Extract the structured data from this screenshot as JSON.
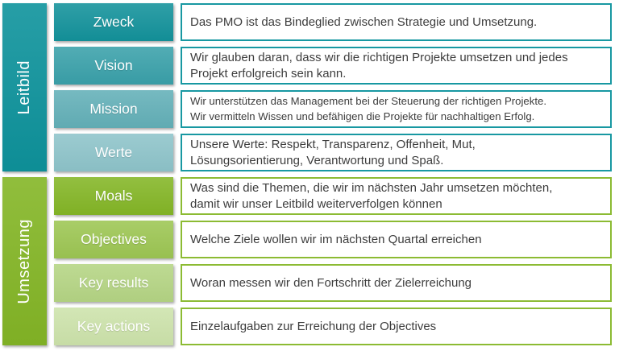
{
  "palette": {
    "teal_sidebar": "#0E939C",
    "teal_border": "#1898A2",
    "green_sidebar": "#84B626",
    "green_border": "#8CBB33",
    "description_text": "#3D3D3D",
    "label_text": "#FFFFFF",
    "box_background": "#FFFFFF"
  },
  "groups": {
    "leitbild": {
      "label": "Leitbild",
      "color": "#0E939C"
    },
    "umsetzung": {
      "label": "Umsetzung",
      "color": "#84B626"
    }
  },
  "rows": [
    {
      "group": "leitbild",
      "label": "Zweck",
      "label_bg": "#13929B",
      "border": "#1898A2",
      "small_text": false,
      "desc_lines": [
        "Das PMO ist das Bindeglied zwischen Strategie und Umsetzung."
      ]
    },
    {
      "group": "leitbild",
      "label": "Vision",
      "label_bg": "#3AA1AA",
      "border": "#1898A2",
      "small_text": false,
      "desc_lines": [
        "Wir glauben daran, dass wir die richtigen Projekte umsetzen und jedes",
        "Projekt erfolgreich sein kann."
      ]
    },
    {
      "group": "leitbild",
      "label": "Mission",
      "label_bg": "#63B0B8",
      "border": "#1898A2",
      "small_text": true,
      "desc_lines": [
        "Wir unterstützen das Management bei der Steuerung der richtigen Projekte.",
        "Wir vermitteln Wissen und befähigen die Projekte für nachhaltigen Erfolg."
      ]
    },
    {
      "group": "leitbild",
      "label": "Werte",
      "label_bg": "#8EC4CA",
      "border": "#1898A2",
      "small_text": false,
      "desc_lines": [
        "Unsere Werte: Respekt, Transparenz, Offenheit, Mut,",
        "Lösungsorientierung, Verantwortung und Spaß."
      ]
    },
    {
      "group": "umsetzung",
      "label": "Moals",
      "label_bg": "#84B626",
      "border": "#8CBB33",
      "small_text": false,
      "desc_lines": [
        "Was sind die Themen, die wir im nächsten Jahr umsetzen möchten,",
        "damit wir unser Leitbild weiterverfolgen können"
      ]
    },
    {
      "group": "umsetzung",
      "label": "Objectives",
      "label_bg": "#9DC653",
      "border": "#8CBB33",
      "small_text": false,
      "desc_lines": [
        "Welche Ziele wollen wir im nächsten Quartal erreichen"
      ]
    },
    {
      "group": "umsetzung",
      "label": "Key results",
      "label_bg": "#B5D584",
      "border": "#8CBB33",
      "small_text": false,
      "desc_lines": [
        "Woran messen wir den Fortschritt der Zielerreichung"
      ]
    },
    {
      "group": "umsetzung",
      "label": "Key actions",
      "label_bg": "#CDE3AB",
      "border": "#8CBB33",
      "small_text": false,
      "desc_lines": [
        "Einzelaufgaben zur Erreichung der Objectives"
      ]
    }
  ]
}
